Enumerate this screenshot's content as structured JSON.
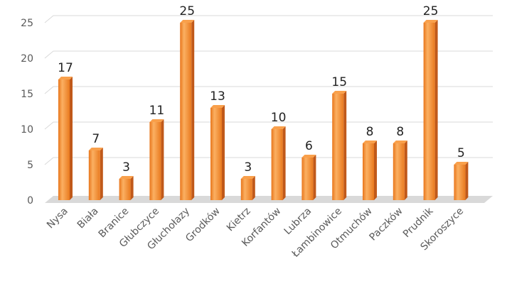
{
  "chart_data": {
    "type": "bar",
    "title": "",
    "xlabel": "",
    "ylabel": "",
    "ylim": [
      0,
      25
    ],
    "yticks": [
      0,
      5,
      10,
      15,
      20,
      25
    ],
    "grid": true,
    "legend": "none",
    "three_d": true,
    "categories": [
      "Nysa",
      "Biała",
      "Branice",
      "Głubczyce",
      "Głuchołazy",
      "Grodków",
      "Kietrz",
      "Korfantów",
      "Lubrza",
      "Łambinowice",
      "Otmuchów",
      "Paczków",
      "Prudnik",
      "Skoroszyce"
    ],
    "values": [
      17,
      7,
      3,
      11,
      25,
      13,
      3,
      10,
      6,
      15,
      8,
      8,
      25,
      5
    ],
    "colors": {
      "bar_front": "#f28a2a",
      "bar_highlight": "#fbb062",
      "bar_side": "#c0591a",
      "bar_top": "#f9a04b",
      "floor": "#d9d9d9",
      "grid": "#d9d9d9"
    }
  }
}
